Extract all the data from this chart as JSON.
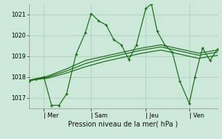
{
  "bg_color": "#cce8d8",
  "grid_color": "#aacfbe",
  "line_color": "#1a6b1a",
  "xlabel": "Pression niveau de la mer( hPa )",
  "yticks": [
    1017,
    1018,
    1019,
    1020,
    1021
  ],
  "ylim": [
    1016.5,
    1021.5
  ],
  "xtick_labels": [
    "| Mer",
    "| Sam",
    "| Jeu",
    "| Ven"
  ],
  "xtick_positions": [
    0.08,
    0.33,
    0.62,
    0.85
  ],
  "main_x": [
    0.0,
    0.04,
    0.08,
    0.12,
    0.16,
    0.2,
    0.25,
    0.3,
    0.33,
    0.37,
    0.41,
    0.45,
    0.49,
    0.53,
    0.57,
    0.62,
    0.65,
    0.68,
    0.72,
    0.76,
    0.8,
    0.85,
    0.88,
    0.92,
    0.96,
    1.0
  ],
  "main_y": [
    1017.8,
    1017.9,
    1018.0,
    1016.65,
    1016.65,
    1017.2,
    1019.1,
    1020.15,
    1021.05,
    1020.7,
    1020.5,
    1019.8,
    1019.55,
    1018.85,
    1019.55,
    1021.3,
    1021.5,
    1020.2,
    1019.55,
    1019.2,
    1017.8,
    1016.75,
    1018.0,
    1019.4,
    1018.8,
    1019.35
  ],
  "s1_x": [
    0.0,
    0.1,
    0.2,
    0.3,
    0.4,
    0.5,
    0.6,
    0.7,
    0.8,
    0.9,
    1.0
  ],
  "s1_y": [
    1017.85,
    1018.05,
    1018.4,
    1018.8,
    1019.0,
    1019.2,
    1019.4,
    1019.55,
    1019.35,
    1019.15,
    1019.3
  ],
  "s2_x": [
    0.0,
    0.1,
    0.2,
    0.3,
    0.4,
    0.5,
    0.6,
    0.7,
    0.8,
    0.9,
    1.0
  ],
  "s2_y": [
    1017.85,
    1018.0,
    1018.3,
    1018.65,
    1018.9,
    1019.1,
    1019.3,
    1019.45,
    1019.25,
    1019.05,
    1019.2
  ],
  "s3_x": [
    0.0,
    0.1,
    0.2,
    0.3,
    0.4,
    0.5,
    0.6,
    0.7,
    0.8,
    0.9,
    1.0
  ],
  "s3_y": [
    1017.85,
    1017.95,
    1018.2,
    1018.5,
    1018.75,
    1018.95,
    1019.15,
    1019.3,
    1019.1,
    1018.9,
    1019.05
  ]
}
